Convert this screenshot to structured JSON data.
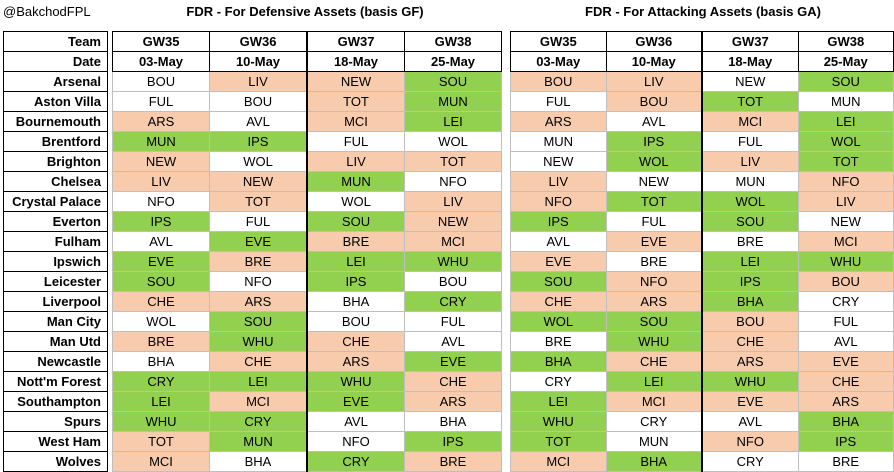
{
  "header": {
    "handle": "@BakchodFPL",
    "defensive_title": "FDR - For Defensive Assets (basis GF)",
    "attacking_title": "FDR - For Attacking Assets (basis GA)"
  },
  "labels": {
    "team": "Team",
    "date": "Date"
  },
  "gameweeks": [
    {
      "gw": "GW35",
      "date": "03-May"
    },
    {
      "gw": "GW36",
      "date": "10-May"
    },
    {
      "gw": "GW37",
      "date": "18-May"
    },
    {
      "gw": "GW38",
      "date": "25-May"
    }
  ],
  "colors": {
    "easy": "#92d050",
    "hard": "#f8cbad",
    "neutral": "#ffffff"
  },
  "teams": [
    "Arsenal",
    "Aston Villa",
    "Bournemouth",
    "Brentford",
    "Brighton",
    "Chelsea",
    "Crystal Palace",
    "Everton",
    "Fulham",
    "Ipswich",
    "Leicester",
    "Liverpool",
    "Man City",
    "Man Utd",
    "Newcastle",
    "Nott'm Forest",
    "Southampton",
    "Spurs",
    "West Ham",
    "Wolves"
  ],
  "defensive": [
    [
      {
        "o": "BOU",
        "r": "n"
      },
      {
        "o": "LIV",
        "r": "h"
      },
      {
        "o": "NEW",
        "r": "h"
      },
      {
        "o": "SOU",
        "r": "e"
      }
    ],
    [
      {
        "o": "FUL",
        "r": "n"
      },
      {
        "o": "BOU",
        "r": "n"
      },
      {
        "o": "TOT",
        "r": "h"
      },
      {
        "o": "MUN",
        "r": "e"
      }
    ],
    [
      {
        "o": "ARS",
        "r": "h"
      },
      {
        "o": "AVL",
        "r": "n"
      },
      {
        "o": "MCI",
        "r": "h"
      },
      {
        "o": "LEI",
        "r": "e"
      }
    ],
    [
      {
        "o": "MUN",
        "r": "e"
      },
      {
        "o": "IPS",
        "r": "e"
      },
      {
        "o": "FUL",
        "r": "n"
      },
      {
        "o": "WOL",
        "r": "n"
      }
    ],
    [
      {
        "o": "NEW",
        "r": "h"
      },
      {
        "o": "WOL",
        "r": "n"
      },
      {
        "o": "LIV",
        "r": "h"
      },
      {
        "o": "TOT",
        "r": "h"
      }
    ],
    [
      {
        "o": "LIV",
        "r": "h"
      },
      {
        "o": "NEW",
        "r": "h"
      },
      {
        "o": "MUN",
        "r": "e"
      },
      {
        "o": "NFO",
        "r": "n"
      }
    ],
    [
      {
        "o": "NFO",
        "r": "n"
      },
      {
        "o": "TOT",
        "r": "h"
      },
      {
        "o": "WOL",
        "r": "n"
      },
      {
        "o": "LIV",
        "r": "h"
      }
    ],
    [
      {
        "o": "IPS",
        "r": "e"
      },
      {
        "o": "FUL",
        "r": "n"
      },
      {
        "o": "SOU",
        "r": "e"
      },
      {
        "o": "NEW",
        "r": "h"
      }
    ],
    [
      {
        "o": "AVL",
        "r": "n"
      },
      {
        "o": "EVE",
        "r": "e"
      },
      {
        "o": "BRE",
        "r": "h"
      },
      {
        "o": "MCI",
        "r": "h"
      }
    ],
    [
      {
        "o": "EVE",
        "r": "e"
      },
      {
        "o": "BRE",
        "r": "h"
      },
      {
        "o": "LEI",
        "r": "e"
      },
      {
        "o": "WHU",
        "r": "e"
      }
    ],
    [
      {
        "o": "SOU",
        "r": "e"
      },
      {
        "o": "NFO",
        "r": "n"
      },
      {
        "o": "IPS",
        "r": "e"
      },
      {
        "o": "BOU",
        "r": "n"
      }
    ],
    [
      {
        "o": "CHE",
        "r": "h"
      },
      {
        "o": "ARS",
        "r": "h"
      },
      {
        "o": "BHA",
        "r": "n"
      },
      {
        "o": "CRY",
        "r": "e"
      }
    ],
    [
      {
        "o": "WOL",
        "r": "n"
      },
      {
        "o": "SOU",
        "r": "e"
      },
      {
        "o": "BOU",
        "r": "n"
      },
      {
        "o": "FUL",
        "r": "n"
      }
    ],
    [
      {
        "o": "BRE",
        "r": "h"
      },
      {
        "o": "WHU",
        "r": "e"
      },
      {
        "o": "CHE",
        "r": "h"
      },
      {
        "o": "AVL",
        "r": "n"
      }
    ],
    [
      {
        "o": "BHA",
        "r": "n"
      },
      {
        "o": "CHE",
        "r": "h"
      },
      {
        "o": "ARS",
        "r": "h"
      },
      {
        "o": "EVE",
        "r": "e"
      }
    ],
    [
      {
        "o": "CRY",
        "r": "e"
      },
      {
        "o": "LEI",
        "r": "e"
      },
      {
        "o": "WHU",
        "r": "e"
      },
      {
        "o": "CHE",
        "r": "h"
      }
    ],
    [
      {
        "o": "LEI",
        "r": "e"
      },
      {
        "o": "MCI",
        "r": "h"
      },
      {
        "o": "EVE",
        "r": "e"
      },
      {
        "o": "ARS",
        "r": "h"
      }
    ],
    [
      {
        "o": "WHU",
        "r": "e"
      },
      {
        "o": "CRY",
        "r": "e"
      },
      {
        "o": "AVL",
        "r": "n"
      },
      {
        "o": "BHA",
        "r": "n"
      }
    ],
    [
      {
        "o": "TOT",
        "r": "h"
      },
      {
        "o": "MUN",
        "r": "e"
      },
      {
        "o": "NFO",
        "r": "n"
      },
      {
        "o": "IPS",
        "r": "e"
      }
    ],
    [
      {
        "o": "MCI",
        "r": "h"
      },
      {
        "o": "BHA",
        "r": "n"
      },
      {
        "o": "CRY",
        "r": "e"
      },
      {
        "o": "BRE",
        "r": "h"
      }
    ]
  ],
  "attacking": [
    [
      {
        "o": "BOU",
        "r": "h"
      },
      {
        "o": "LIV",
        "r": "h"
      },
      {
        "o": "NEW",
        "r": "n"
      },
      {
        "o": "SOU",
        "r": "e"
      }
    ],
    [
      {
        "o": "FUL",
        "r": "n"
      },
      {
        "o": "BOU",
        "r": "h"
      },
      {
        "o": "TOT",
        "r": "e"
      },
      {
        "o": "MUN",
        "r": "n"
      }
    ],
    [
      {
        "o": "ARS",
        "r": "h"
      },
      {
        "o": "AVL",
        "r": "n"
      },
      {
        "o": "MCI",
        "r": "h"
      },
      {
        "o": "LEI",
        "r": "e"
      }
    ],
    [
      {
        "o": "MUN",
        "r": "n"
      },
      {
        "o": "IPS",
        "r": "e"
      },
      {
        "o": "FUL",
        "r": "n"
      },
      {
        "o": "WOL",
        "r": "e"
      }
    ],
    [
      {
        "o": "NEW",
        "r": "n"
      },
      {
        "o": "WOL",
        "r": "e"
      },
      {
        "o": "LIV",
        "r": "h"
      },
      {
        "o": "TOT",
        "r": "e"
      }
    ],
    [
      {
        "o": "LIV",
        "r": "h"
      },
      {
        "o": "NEW",
        "r": "n"
      },
      {
        "o": "MUN",
        "r": "n"
      },
      {
        "o": "NFO",
        "r": "h"
      }
    ],
    [
      {
        "o": "NFO",
        "r": "h"
      },
      {
        "o": "TOT",
        "r": "e"
      },
      {
        "o": "WOL",
        "r": "e"
      },
      {
        "o": "LIV",
        "r": "h"
      }
    ],
    [
      {
        "o": "IPS",
        "r": "e"
      },
      {
        "o": "FUL",
        "r": "n"
      },
      {
        "o": "SOU",
        "r": "e"
      },
      {
        "o": "NEW",
        "r": "n"
      }
    ],
    [
      {
        "o": "AVL",
        "r": "n"
      },
      {
        "o": "EVE",
        "r": "h"
      },
      {
        "o": "BRE",
        "r": "n"
      },
      {
        "o": "MCI",
        "r": "h"
      }
    ],
    [
      {
        "o": "EVE",
        "r": "h"
      },
      {
        "o": "BRE",
        "r": "n"
      },
      {
        "o": "LEI",
        "r": "e"
      },
      {
        "o": "WHU",
        "r": "e"
      }
    ],
    [
      {
        "o": "SOU",
        "r": "e"
      },
      {
        "o": "NFO",
        "r": "h"
      },
      {
        "o": "IPS",
        "r": "e"
      },
      {
        "o": "BOU",
        "r": "h"
      }
    ],
    [
      {
        "o": "CHE",
        "r": "h"
      },
      {
        "o": "ARS",
        "r": "h"
      },
      {
        "o": "BHA",
        "r": "e"
      },
      {
        "o": "CRY",
        "r": "n"
      }
    ],
    [
      {
        "o": "WOL",
        "r": "e"
      },
      {
        "o": "SOU",
        "r": "e"
      },
      {
        "o": "BOU",
        "r": "h"
      },
      {
        "o": "FUL",
        "r": "n"
      }
    ],
    [
      {
        "o": "BRE",
        "r": "n"
      },
      {
        "o": "WHU",
        "r": "e"
      },
      {
        "o": "CHE",
        "r": "h"
      },
      {
        "o": "AVL",
        "r": "n"
      }
    ],
    [
      {
        "o": "BHA",
        "r": "e"
      },
      {
        "o": "CHE",
        "r": "h"
      },
      {
        "o": "ARS",
        "r": "h"
      },
      {
        "o": "EVE",
        "r": "h"
      }
    ],
    [
      {
        "o": "CRY",
        "r": "n"
      },
      {
        "o": "LEI",
        "r": "e"
      },
      {
        "o": "WHU",
        "r": "e"
      },
      {
        "o": "CHE",
        "r": "h"
      }
    ],
    [
      {
        "o": "LEI",
        "r": "e"
      },
      {
        "o": "MCI",
        "r": "h"
      },
      {
        "o": "EVE",
        "r": "h"
      },
      {
        "o": "ARS",
        "r": "h"
      }
    ],
    [
      {
        "o": "WHU",
        "r": "e"
      },
      {
        "o": "CRY",
        "r": "n"
      },
      {
        "o": "AVL",
        "r": "n"
      },
      {
        "o": "BHA",
        "r": "e"
      }
    ],
    [
      {
        "o": "TOT",
        "r": "e"
      },
      {
        "o": "MUN",
        "r": "n"
      },
      {
        "o": "NFO",
        "r": "h"
      },
      {
        "o": "IPS",
        "r": "e"
      }
    ],
    [
      {
        "o": "MCI",
        "r": "h"
      },
      {
        "o": "BHA",
        "r": "e"
      },
      {
        "o": "CRY",
        "r": "n"
      },
      {
        "o": "BRE",
        "r": "n"
      }
    ]
  ]
}
